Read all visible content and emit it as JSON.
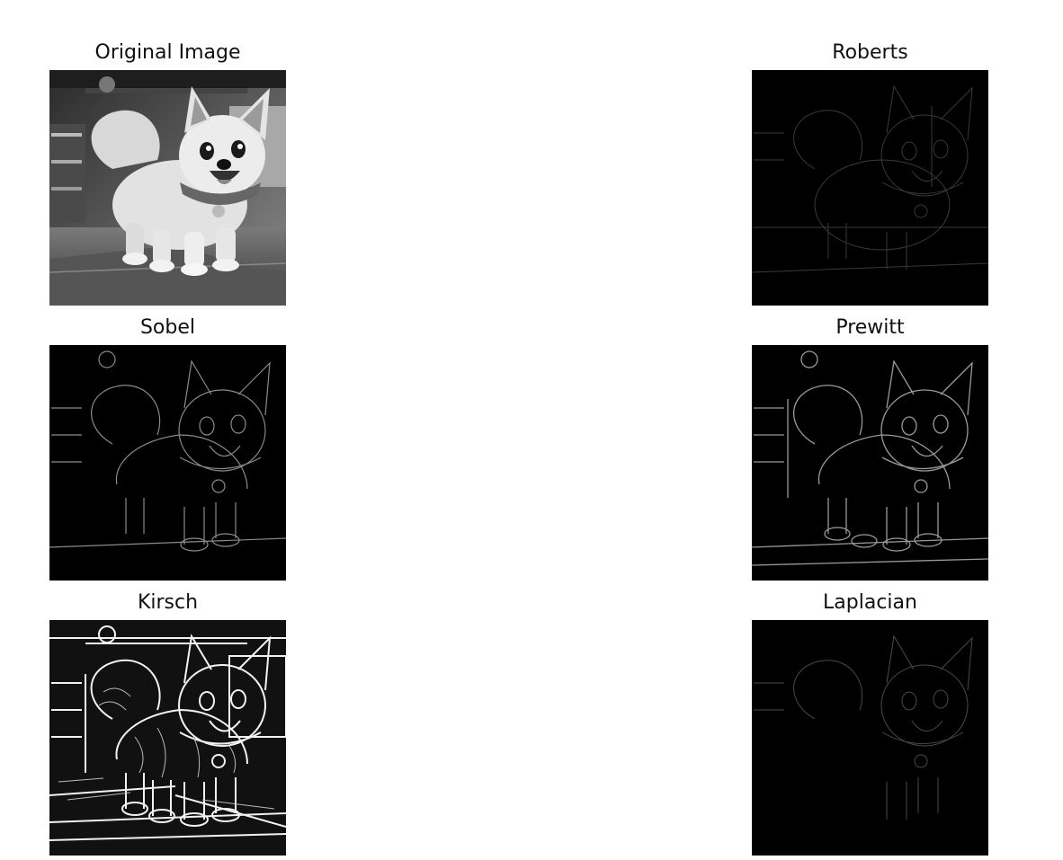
{
  "figure": {
    "panels": [
      {
        "id": "original",
        "title": "Original Image",
        "style": "grayscale-photo"
      },
      {
        "id": "roberts",
        "title": "Roberts",
        "style": "edge-faint"
      },
      {
        "id": "sobel",
        "title": "Sobel",
        "style": "edge-medium"
      },
      {
        "id": "prewitt",
        "title": "Prewitt",
        "style": "edge-medium"
      },
      {
        "id": "kirsch",
        "title": "Kirsch",
        "style": "edge-strong"
      },
      {
        "id": "laplacian",
        "title": "Laplacian",
        "style": "edge-faint"
      }
    ]
  }
}
